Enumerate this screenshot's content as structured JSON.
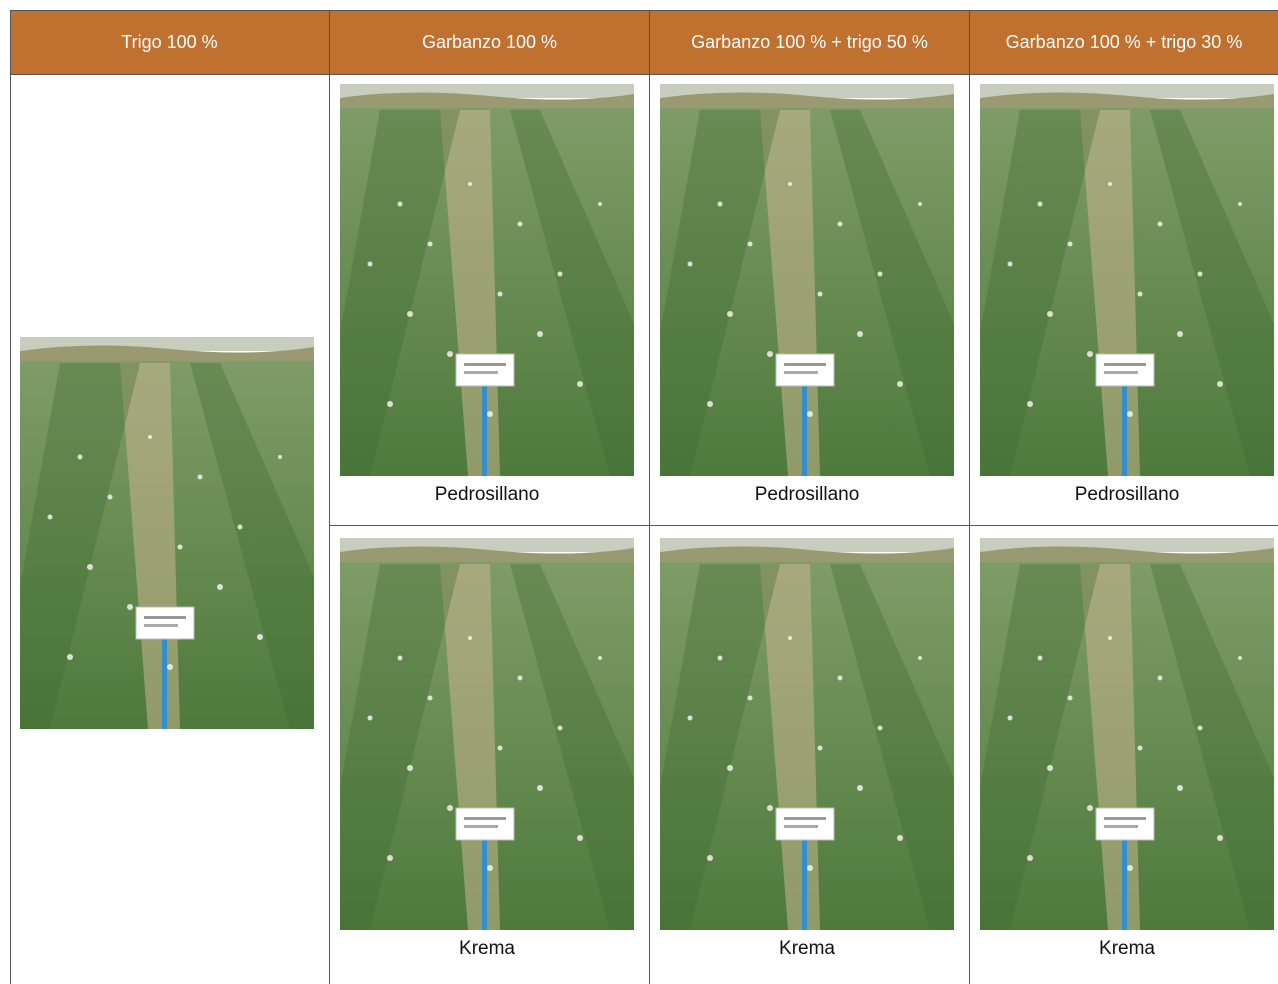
{
  "table": {
    "headers": [
      "Trigo 100 %",
      "Garbanzo 100 %",
      "Garbanzo 100 % + trigo 50 %",
      "Garbanzo 100 % + trigo 30 %"
    ],
    "rows": [
      {
        "captions": [
          "Pedrosillano",
          "Pedrosillano",
          "Pedrosillano"
        ]
      },
      {
        "captions": [
          "Krema",
          "Krema",
          "Krema"
        ]
      }
    ]
  },
  "photos": {
    "trigo": "wheat-plot-photo",
    "garbanzo": "chickpea-plot-photo",
    "mix50": "chickpea-wheat-50-plot-photo",
    "mix30": "chickpea-wheat-30-plot-photo"
  },
  "colors": {
    "header_bg": "#c0712f",
    "header_text": "#ffffff",
    "border": "#555555",
    "sky": "#c9cdbd",
    "hill": "#9a9a72",
    "crop": "#5f8747",
    "crop_dark": "#3f6a32",
    "soil": "#c9b48f",
    "stake": "#2f8fd0"
  }
}
